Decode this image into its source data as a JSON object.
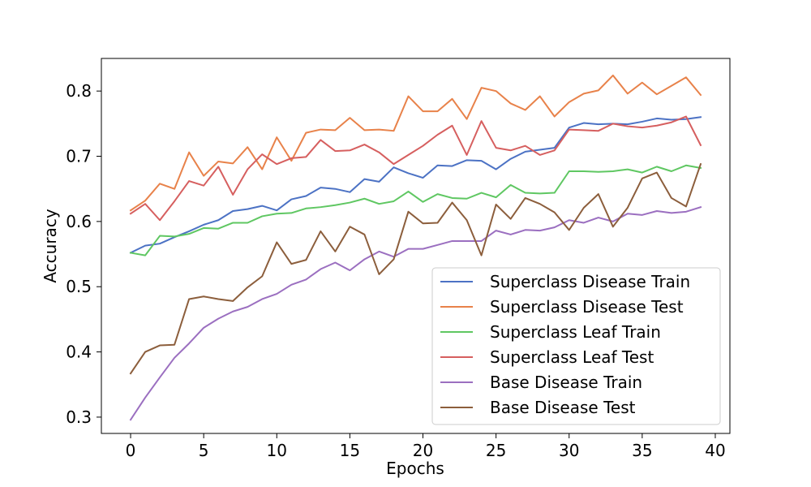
{
  "chart_data": {
    "type": "line",
    "title": "",
    "xlabel": "Epochs",
    "ylabel": "Accuracy",
    "xlim": [
      -2,
      41
    ],
    "ylim": [
      0.275,
      0.85
    ],
    "xticks": [
      0,
      5,
      10,
      15,
      20,
      25,
      30,
      35,
      40
    ],
    "yticks": [
      0.3,
      0.4,
      0.5,
      0.6,
      0.7,
      0.8
    ],
    "ytick_labels": [
      "0.3",
      "0.4",
      "0.5",
      "0.6",
      "0.7",
      "0.8"
    ],
    "grid": false,
    "legend": "lower-right",
    "x": [
      0,
      1,
      2,
      3,
      4,
      5,
      6,
      7,
      8,
      9,
      10,
      11,
      12,
      13,
      14,
      15,
      16,
      17,
      18,
      19,
      20,
      21,
      22,
      23,
      24,
      25,
      26,
      27,
      28,
      29,
      30,
      31,
      32,
      33,
      34,
      35,
      36,
      37,
      38,
      39
    ],
    "series": [
      {
        "name": "Superclass Disease Train",
        "color": "#4c72c4",
        "values": [
          0.552,
          0.563,
          0.566,
          0.576,
          0.585,
          0.595,
          0.602,
          0.616,
          0.619,
          0.624,
          0.617,
          0.634,
          0.639,
          0.652,
          0.65,
          0.645,
          0.665,
          0.661,
          0.683,
          0.674,
          0.667,
          0.686,
          0.685,
          0.694,
          0.693,
          0.68,
          0.696,
          0.707,
          0.71,
          0.713,
          0.744,
          0.751,
          0.749,
          0.75,
          0.749,
          0.753,
          0.758,
          0.756,
          0.757,
          0.76
        ]
      },
      {
        "name": "Superclass Disease Test",
        "color": "#e8824a",
        "values": [
          0.617,
          0.632,
          0.658,
          0.65,
          0.706,
          0.67,
          0.692,
          0.689,
          0.714,
          0.68,
          0.729,
          0.693,
          0.736,
          0.741,
          0.74,
          0.759,
          0.74,
          0.741,
          0.739,
          0.792,
          0.769,
          0.769,
          0.788,
          0.757,
          0.805,
          0.8,
          0.781,
          0.771,
          0.792,
          0.761,
          0.783,
          0.796,
          0.801,
          0.824,
          0.796,
          0.813,
          0.795,
          0.808,
          0.821,
          0.794
        ]
      },
      {
        "name": "Superclass Leaf Train",
        "color": "#5fc762",
        "values": [
          0.552,
          0.548,
          0.578,
          0.577,
          0.581,
          0.59,
          0.589,
          0.598,
          0.598,
          0.608,
          0.612,
          0.613,
          0.62,
          0.622,
          0.625,
          0.629,
          0.635,
          0.627,
          0.631,
          0.646,
          0.63,
          0.642,
          0.636,
          0.635,
          0.644,
          0.637,
          0.656,
          0.644,
          0.643,
          0.644,
          0.677,
          0.677,
          0.676,
          0.677,
          0.68,
          0.675,
          0.684,
          0.677,
          0.686,
          0.682
        ]
      },
      {
        "name": "Superclass Leaf Test",
        "color": "#d65f5f",
        "values": [
          0.612,
          0.627,
          0.602,
          0.631,
          0.662,
          0.655,
          0.684,
          0.641,
          0.68,
          0.703,
          0.688,
          0.697,
          0.699,
          0.725,
          0.708,
          0.709,
          0.718,
          0.706,
          0.688,
          0.702,
          0.716,
          0.733,
          0.747,
          0.702,
          0.754,
          0.713,
          0.709,
          0.716,
          0.702,
          0.709,
          0.741,
          0.74,
          0.739,
          0.75,
          0.746,
          0.744,
          0.747,
          0.752,
          0.761,
          0.717
        ]
      },
      {
        "name": "Base Disease Train",
        "color": "#9b6fc0",
        "values": [
          0.296,
          0.33,
          0.361,
          0.391,
          0.413,
          0.437,
          0.451,
          0.462,
          0.469,
          0.481,
          0.489,
          0.503,
          0.511,
          0.527,
          0.537,
          0.525,
          0.542,
          0.554,
          0.546,
          0.558,
          0.558,
          0.564,
          0.57,
          0.57,
          0.57,
          0.586,
          0.58,
          0.587,
          0.586,
          0.591,
          0.602,
          0.598,
          0.606,
          0.6,
          0.612,
          0.61,
          0.616,
          0.613,
          0.615,
          0.622
        ]
      },
      {
        "name": "Base Disease Test",
        "color": "#8c5e3c",
        "values": [
          0.367,
          0.4,
          0.41,
          0.411,
          0.481,
          0.485,
          0.481,
          0.478,
          0.499,
          0.516,
          0.568,
          0.535,
          0.541,
          0.585,
          0.554,
          0.592,
          0.58,
          0.519,
          0.542,
          0.615,
          0.597,
          0.598,
          0.629,
          0.602,
          0.548,
          0.626,
          0.604,
          0.636,
          0.627,
          0.614,
          0.587,
          0.621,
          0.642,
          0.592,
          0.621,
          0.666,
          0.675,
          0.636,
          0.623,
          0.688
        ]
      }
    ]
  }
}
